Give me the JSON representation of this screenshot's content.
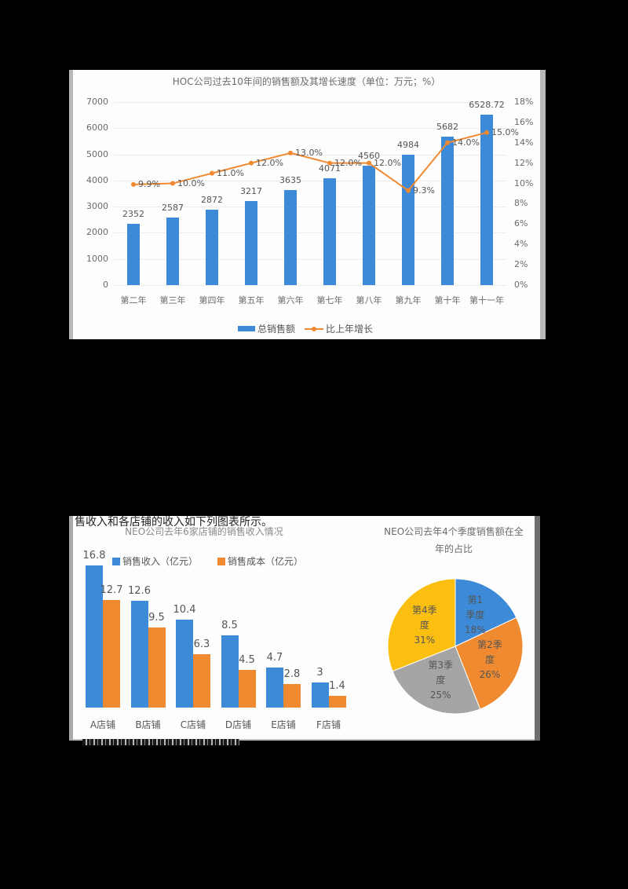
{
  "document": {
    "text_line_1": "售收入和各店铺的收入如下列图表所示。",
    "text_line_2_garbled": "▂▆▂▅▇▅▆▅▇▆▂▅▆▅▂▇▅▆▂"
  },
  "colors": {
    "blue": "#3d8bd8",
    "orange": "#f08a31",
    "gray": "#a5a5a5",
    "yellow": "#fbbf12",
    "page_bg": "#000000",
    "chart_bg": "#fdfdfd"
  },
  "chart_data": [
    {
      "type": "bar+line",
      "title": "HOC公司过去10年间的销售额及其增长速度（单位：万元；%）",
      "categories": [
        "第二年",
        "第三年",
        "第四年",
        "第五年",
        "第六年",
        "第七年",
        "第八年",
        "第九年",
        "第十年",
        "第十一年"
      ],
      "series": [
        {
          "name": "总销售额",
          "type": "bar",
          "axis": "left",
          "values": [
            2352,
            2587,
            2872,
            3217,
            3635,
            4071,
            4560,
            4984,
            5682,
            6528.72
          ],
          "labels": [
            "2352",
            "2587",
            "2872",
            "3217",
            "3635",
            "4071",
            "4560",
            "4984",
            "5682",
            "6528.72"
          ]
        },
        {
          "name": "比上年增长",
          "type": "line",
          "axis": "right",
          "values": [
            9.9,
            10.0,
            11.0,
            12.0,
            13.0,
            12.0,
            12.0,
            9.3,
            14.0,
            15.0
          ],
          "labels": [
            "9.9%",
            "10.0%",
            "11.0%",
            "12.0%",
            "13.0%",
            "12.0%",
            "12.0%",
            "9.3%",
            "14.0%",
            "15.0%"
          ]
        }
      ],
      "left_axis": {
        "ticks": [
          "0",
          "1000",
          "2000",
          "3000",
          "4000",
          "5000",
          "6000",
          "7000"
        ],
        "range": [
          0,
          7000
        ]
      },
      "right_axis": {
        "ticks": [
          "0%",
          "2%",
          "4%",
          "6%",
          "8%",
          "10%",
          "12%",
          "14%",
          "16%",
          "18%"
        ],
        "range": [
          0,
          18
        ]
      },
      "grid": true,
      "legend_position": "bottom",
      "legend": [
        "总销售额",
        "比上年增长"
      ]
    },
    {
      "type": "bar",
      "title": "NEO公司去年6家店铺的销售收入情况",
      "categories": [
        "A店铺",
        "B店铺",
        "C店铺",
        "D店铺",
        "E店铺",
        "F店铺"
      ],
      "series": [
        {
          "name": "销售收入（亿元）",
          "values": [
            16.8,
            12.6,
            10.4,
            8.5,
            4.7,
            3
          ],
          "labels": [
            "16.8",
            "12.6",
            "10.4",
            "8.5",
            "4.7",
            "3"
          ]
        },
        {
          "name": "销售成本（亿元）",
          "values": [
            12.7,
            9.5,
            6.3,
            4.5,
            2.8,
            1.4
          ],
          "labels": [
            "12.7",
            "9.5",
            "6.3",
            "4.5",
            "2.8",
            "1.4"
          ]
        }
      ],
      "grid": false,
      "legend_position": "top",
      "legend": [
        "销售收入（亿元）",
        "销售成本（亿元）"
      ]
    },
    {
      "type": "pie",
      "title_line_1": "NEO公司去年4个季度销售额在全",
      "title_line_2": "年的占比",
      "slices": [
        {
          "name": "第1季度",
          "label_lines": [
            "第1",
            "季度",
            "18%"
          ],
          "value": 18
        },
        {
          "name": "第2季度",
          "label_lines": [
            "第2季",
            "度",
            "26%"
          ],
          "value": 26
        },
        {
          "name": "第3季度",
          "label_lines": [
            "第3季",
            "度",
            "25%"
          ],
          "value": 25
        },
        {
          "name": "第4季度",
          "label_lines": [
            "第4季",
            "度",
            "31%"
          ],
          "value": 31
        }
      ]
    }
  ]
}
